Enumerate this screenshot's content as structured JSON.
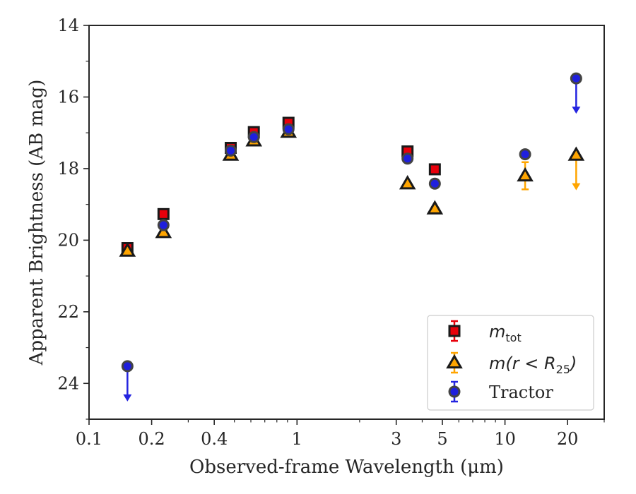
{
  "chart_data": {
    "type": "scatter",
    "xlabel": "Observed-frame Wavelength (μm)",
    "ylabel": "Apparent Brightness (AB mag)",
    "xscale": "log",
    "xlim": [
      0.1,
      30
    ],
    "ylim": [
      25,
      14
    ],
    "y_inverted": true,
    "grid": false,
    "legend_position": "lower-right",
    "x_ticks": [
      {
        "value": 0.1,
        "label": "0.1"
      },
      {
        "value": 0.2,
        "label": "0.2"
      },
      {
        "value": 0.4,
        "label": "0.4"
      },
      {
        "value": 1,
        "label": "1"
      },
      {
        "value": 3,
        "label": "3"
      },
      {
        "value": 5,
        "label": "5"
      },
      {
        "value": 10,
        "label": "10"
      },
      {
        "value": 20,
        "label": "20"
      }
    ],
    "y_ticks": [
      {
        "value": 14,
        "label": "14"
      },
      {
        "value": 16,
        "label": "16"
      },
      {
        "value": 18,
        "label": "18"
      },
      {
        "value": 20,
        "label": "20"
      },
      {
        "value": 22,
        "label": "22"
      },
      {
        "value": 24,
        "label": "24"
      }
    ],
    "series": [
      {
        "name": "m_tot",
        "legend_label": "m",
        "legend_subscript": "tot",
        "marker": "square",
        "face_color": "#e8000b",
        "edge_color": "#1a1a1a",
        "error_color": "#e8000b",
        "points": [
          {
            "x": 0.153,
            "y": 20.22,
            "err": 0.08
          },
          {
            "x": 0.228,
            "y": 19.27,
            "err": 0.05
          },
          {
            "x": 0.48,
            "y": 17.42,
            "err": 0.04
          },
          {
            "x": 0.62,
            "y": 16.98,
            "err": 0.04
          },
          {
            "x": 0.91,
            "y": 16.72,
            "err": 0.04
          },
          {
            "x": 3.4,
            "y": 17.52,
            "err": 0.05
          },
          {
            "x": 4.6,
            "y": 18.02,
            "err": 0.05
          }
        ]
      },
      {
        "name": "m(r < R25)",
        "legend_label": "m(r < R",
        "legend_subscript": "25",
        "legend_suffix": ")",
        "marker": "triangle",
        "face_color": "#ffa500",
        "edge_color": "#1a1a1a",
        "error_color": "#ffa500",
        "points": [
          {
            "x": 0.153,
            "y": 20.3,
            "err": 0.06
          },
          {
            "x": 0.228,
            "y": 19.78,
            "err": 0.05
          },
          {
            "x": 0.48,
            "y": 17.62,
            "err": 0.04
          },
          {
            "x": 0.62,
            "y": 17.22,
            "err": 0.04
          },
          {
            "x": 0.91,
            "y": 16.98,
            "err": 0.04
          },
          {
            "x": 3.4,
            "y": 18.42,
            "err": 0.05
          },
          {
            "x": 4.6,
            "y": 19.12,
            "err": 0.05
          },
          {
            "x": 12.5,
            "y": 18.2,
            "err": 0.38
          },
          {
            "x": 22.0,
            "y": 17.62,
            "upper_limit": true
          }
        ]
      },
      {
        "name": "Tractor",
        "legend_label": "Tractor",
        "marker": "circle",
        "face_color": "#1f1fdd",
        "edge_color": "#444444",
        "error_color": "#2424e0",
        "points": [
          {
            "x": 0.153,
            "y": 23.52,
            "upper_limit": true
          },
          {
            "x": 0.228,
            "y": 19.58,
            "err": 0.04
          },
          {
            "x": 0.48,
            "y": 17.5,
            "err": 0.04
          },
          {
            "x": 0.62,
            "y": 17.12,
            "err": 0.04
          },
          {
            "x": 0.91,
            "y": 16.9,
            "err": 0.04
          },
          {
            "x": 3.4,
            "y": 17.72,
            "err": 0.04
          },
          {
            "x": 4.6,
            "y": 18.42,
            "err": 0.04
          },
          {
            "x": 12.5,
            "y": 17.6,
            "err": 0.05
          },
          {
            "x": 22.0,
            "y": 15.48,
            "upper_limit": true
          }
        ]
      }
    ]
  }
}
